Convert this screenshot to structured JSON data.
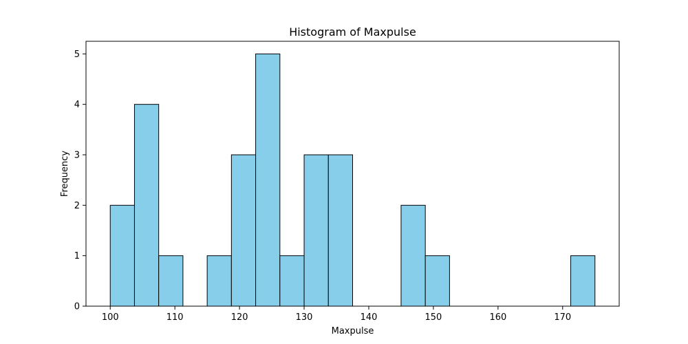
{
  "chart_data": {
    "type": "bar",
    "title": "Histogram of Maxpulse",
    "xlabel": "Maxpulse",
    "ylabel": "Frequency",
    "bins": [
      {
        "x0": 100.0,
        "x1": 103.75,
        "count": 2
      },
      {
        "x0": 103.75,
        "x1": 107.5,
        "count": 4
      },
      {
        "x0": 107.5,
        "x1": 111.25,
        "count": 1
      },
      {
        "x0": 111.25,
        "x1": 115.0,
        "count": 0
      },
      {
        "x0": 115.0,
        "x1": 118.75,
        "count": 1
      },
      {
        "x0": 118.75,
        "x1": 122.5,
        "count": 3
      },
      {
        "x0": 122.5,
        "x1": 126.25,
        "count": 5
      },
      {
        "x0": 126.25,
        "x1": 130.0,
        "count": 1
      },
      {
        "x0": 130.0,
        "x1": 133.75,
        "count": 3
      },
      {
        "x0": 133.75,
        "x1": 137.5,
        "count": 3
      },
      {
        "x0": 137.5,
        "x1": 141.25,
        "count": 0
      },
      {
        "x0": 141.25,
        "x1": 145.0,
        "count": 0
      },
      {
        "x0": 145.0,
        "x1": 148.75,
        "count": 2
      },
      {
        "x0": 148.75,
        "x1": 152.5,
        "count": 1
      },
      {
        "x0": 152.5,
        "x1": 156.25,
        "count": 0
      },
      {
        "x0": 156.25,
        "x1": 160.0,
        "count": 0
      },
      {
        "x0": 160.0,
        "x1": 163.75,
        "count": 0
      },
      {
        "x0": 163.75,
        "x1": 167.5,
        "count": 0
      },
      {
        "x0": 167.5,
        "x1": 171.25,
        "count": 0
      },
      {
        "x0": 171.25,
        "x1": 175.0,
        "count": 1
      }
    ],
    "xlim": [
      96.25,
      178.75
    ],
    "ylim": [
      0,
      5.25
    ],
    "xticks": [
      100,
      110,
      120,
      130,
      140,
      150,
      160,
      170
    ],
    "yticks": [
      0,
      1,
      2,
      3,
      4,
      5
    ],
    "grid": false,
    "colors": {
      "bar_fill": "#87ceeb",
      "bar_edge": "#000000",
      "axes": "#000000",
      "background": "#ffffff"
    }
  }
}
